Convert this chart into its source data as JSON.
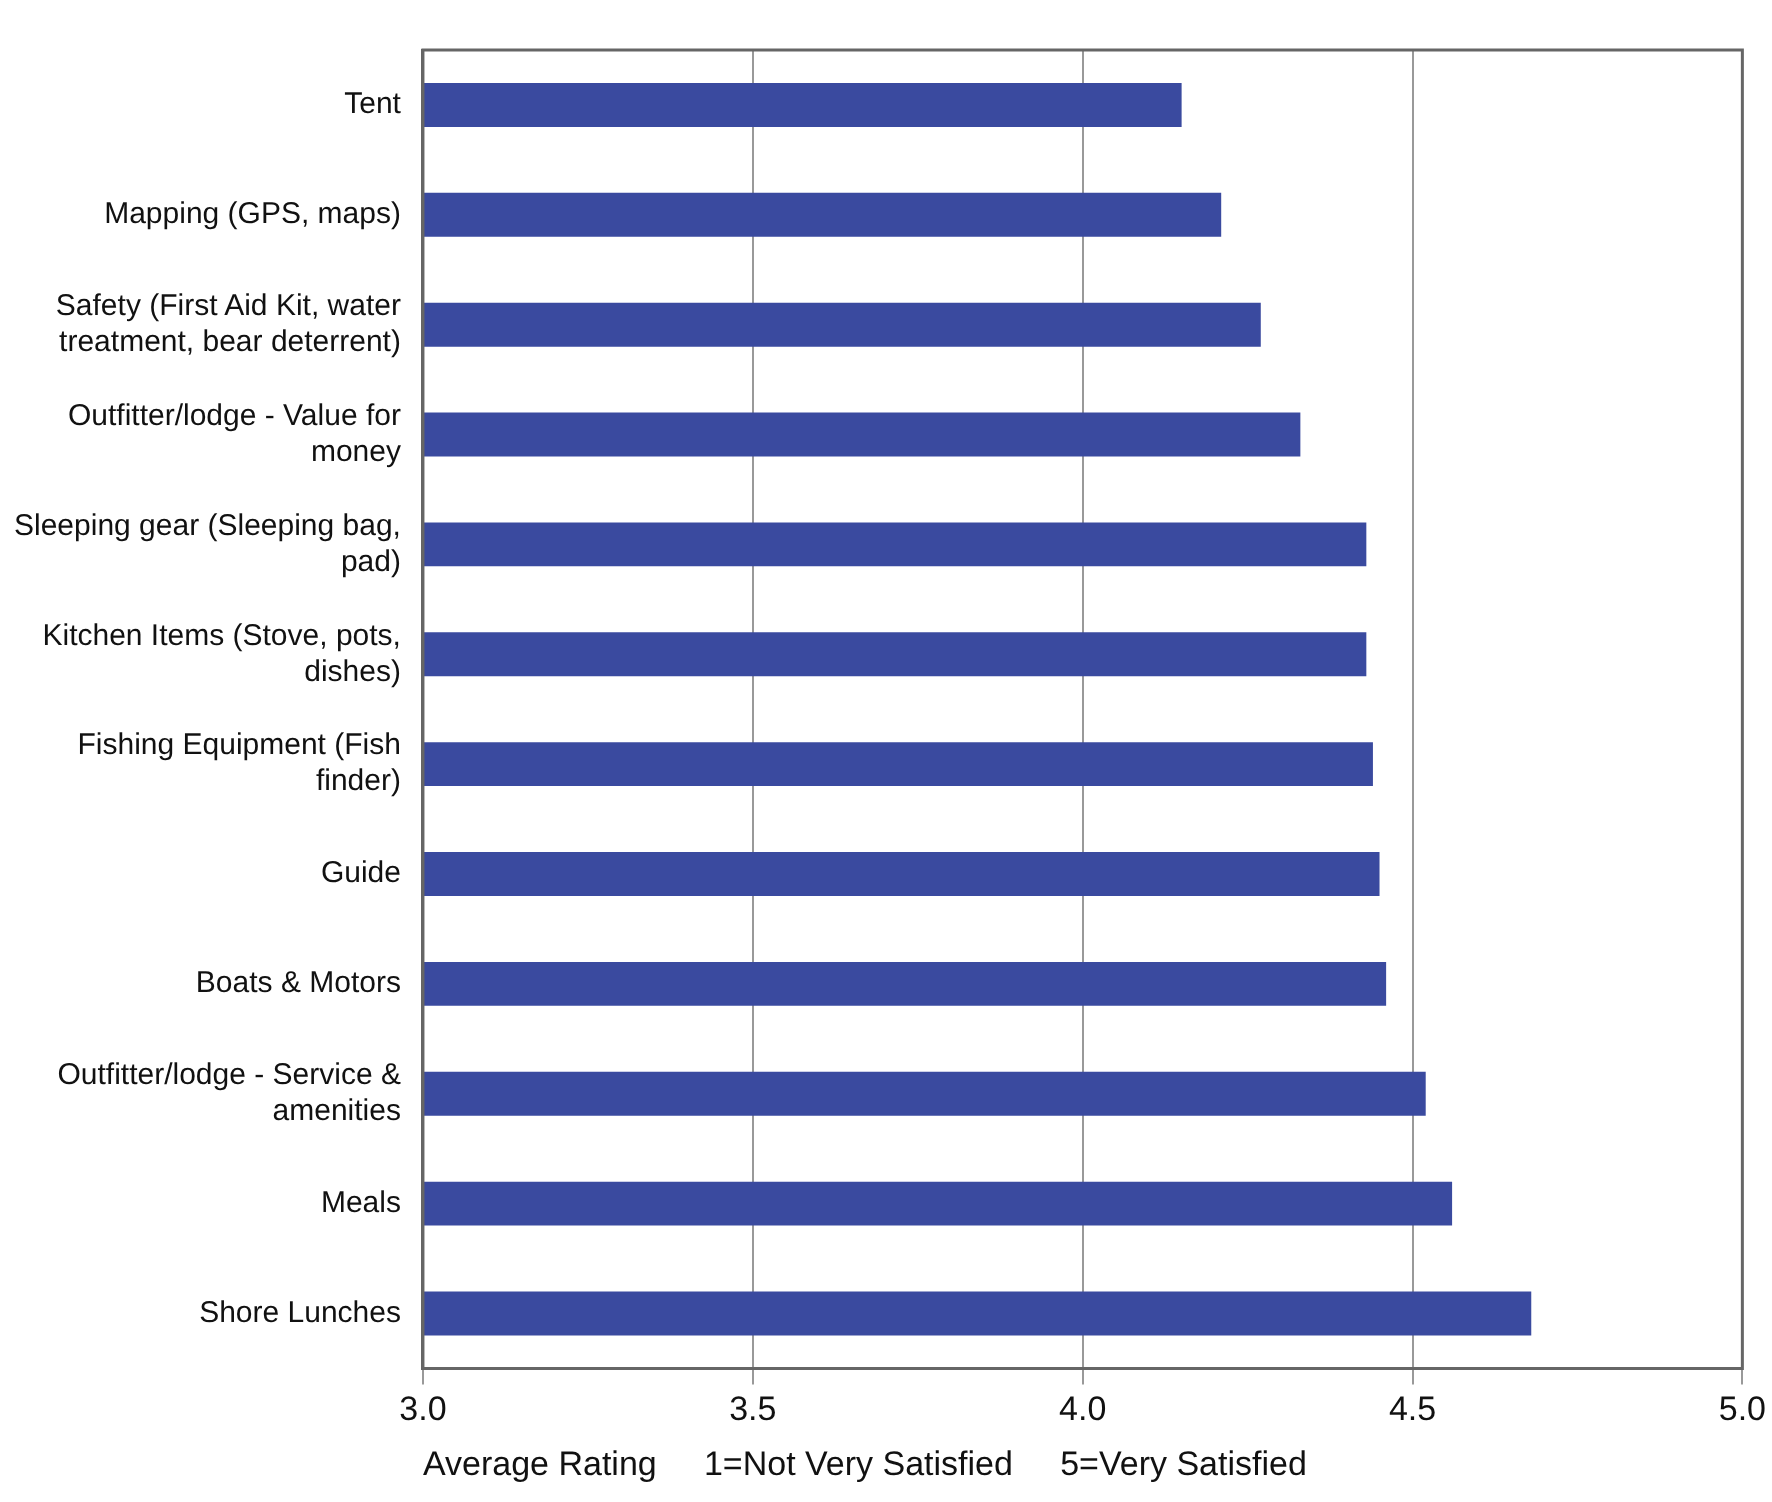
{
  "chart_data": {
    "type": "bar",
    "orientation": "horizontal",
    "categories": [
      "Tent",
      "Mapping (GPS, maps)",
      "Safety (First Aid Kit, water treatment, bear deterrent)",
      "Outfitter/lodge - Value for money",
      "Sleeping gear (Sleeping bag, pad)",
      "Kitchen Items (Stove, pots, dishes)",
      "Fishing Equipment (Fish finder)",
      "Guide",
      "Boats & Motors",
      "Outfitter/lodge - Service & amenities",
      "Meals",
      "Shore Lunches"
    ],
    "values": [
      4.15,
      4.21,
      4.27,
      4.33,
      4.43,
      4.43,
      4.44,
      4.45,
      4.46,
      4.52,
      4.56,
      4.68
    ],
    "color": "#3a4a9f",
    "xlim": [
      3.0,
      5.0
    ],
    "xticks": [
      {
        "value": 3,
        "label": "3.0"
      },
      {
        "value": 3.5,
        "label": "3.5"
      },
      {
        "value": 4,
        "label": "4.0"
      },
      {
        "value": 4.5,
        "label": "4.5"
      },
      {
        "value": 5,
        "label": "5.0"
      }
    ],
    "xlabel": "Average Rating     1=Not Very Satisfied     5=Very Satisfied",
    "grid": "x"
  }
}
